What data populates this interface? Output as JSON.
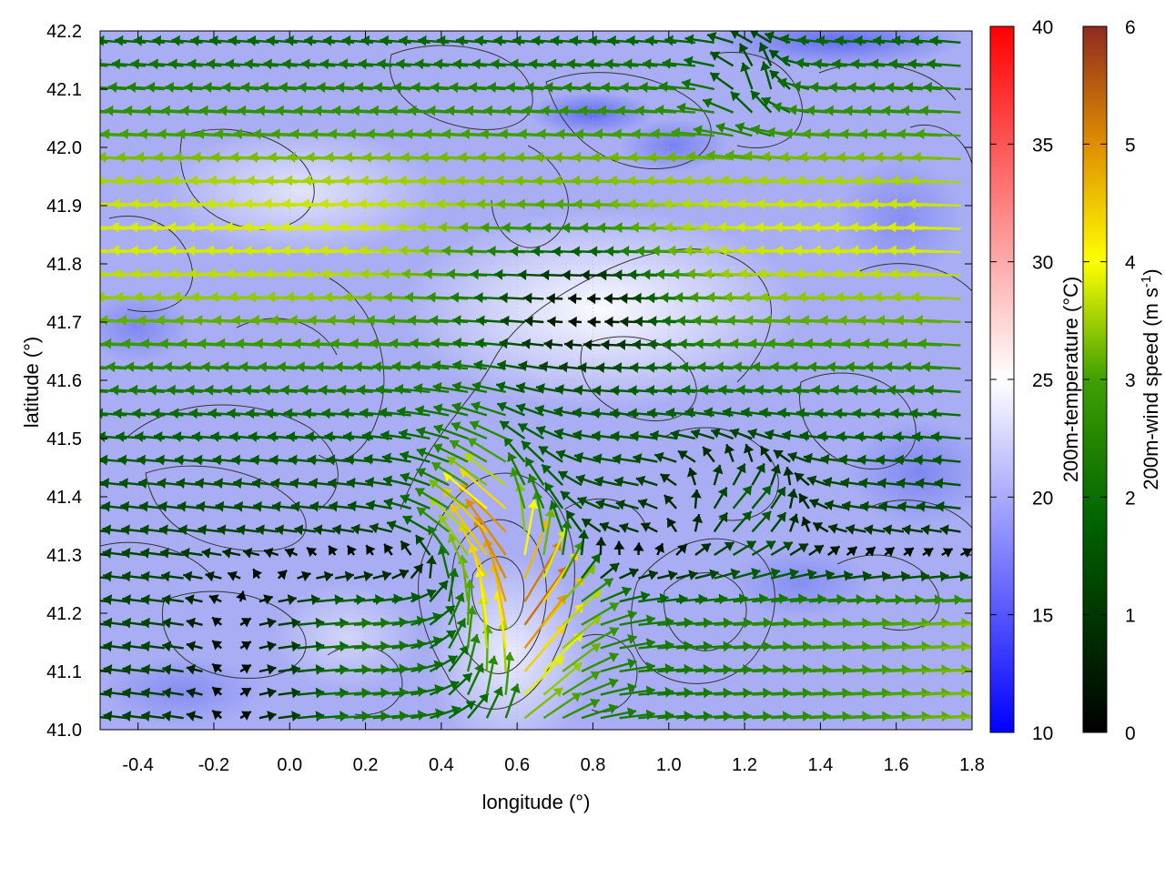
{
  "chart_data": {
    "type": "vector field over heatmap with contours",
    "xlabel": "longitude (°)",
    "ylabel": "latitude (°)",
    "xlim": [
      -0.5,
      1.8
    ],
    "ylim": [
      41.0,
      42.2
    ],
    "xticks": [
      -0.4,
      -0.2,
      0.0,
      0.2,
      0.4,
      0.6,
      0.8,
      1.0,
      1.2,
      1.4,
      1.6,
      1.8
    ],
    "yticks": [
      41.0,
      41.1,
      41.2,
      41.3,
      41.4,
      41.5,
      41.6,
      41.7,
      41.8,
      41.9,
      42.0,
      42.1,
      42.2
    ],
    "grid": true,
    "colorbars": [
      {
        "label": "200m-temperature (°C)",
        "range": [
          10,
          40
        ],
        "ticks": [
          10,
          15,
          20,
          25,
          30,
          35,
          40
        ],
        "colors": [
          "#0000ff",
          "#ffffff",
          "#ff0000"
        ]
      },
      {
        "label_main": "200m-wind speed (m s",
        "label_sup": "-1",
        "label_end": ")",
        "range": [
          0,
          6
        ],
        "ticks": [
          0,
          1,
          2,
          3,
          4,
          5,
          6
        ],
        "colors": [
          "#000000",
          "#006000",
          "#33a000",
          "#ffff00",
          "#e09000",
          "#903020"
        ]
      }
    ]
  }
}
